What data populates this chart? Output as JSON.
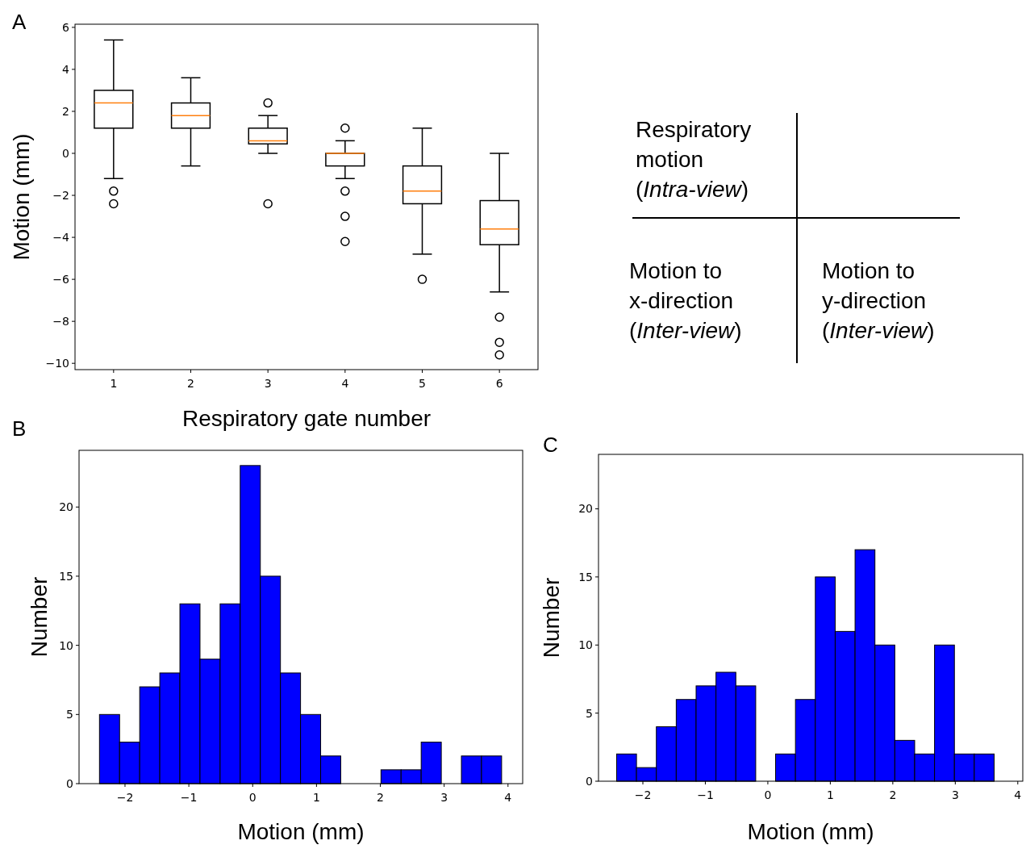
{
  "chart_data": [
    {
      "type": "box",
      "title": "A",
      "xlabel": "Respiratory gate number",
      "ylabel": "Motion (mm)",
      "categories": [
        "1",
        "2",
        "3",
        "4",
        "5",
        "6"
      ],
      "ylim": [
        -10.3,
        6.15
      ],
      "yticks": [
        -10,
        -8,
        -6,
        -4,
        -2,
        0,
        2,
        4,
        6
      ],
      "boxes": [
        {
          "low": -1.2,
          "q1": 1.2,
          "median": 2.4,
          "q3": 3.0,
          "high": 5.4,
          "outliers": [
            -1.8,
            -2.4
          ]
        },
        {
          "low": -0.6,
          "q1": 1.2,
          "median": 1.8,
          "q3": 2.4,
          "high": 3.6
        },
        {
          "low": 0,
          "q1": 0.45,
          "median": 0.6,
          "q3": 1.2,
          "high": 1.8,
          "outliers": [
            2.4,
            -2.4
          ]
        },
        {
          "low": -1.2,
          "q1": -0.6,
          "median": 0,
          "q3": 0,
          "high": 0.6,
          "outliers": [
            1.2,
            -1.8,
            -3.0,
            -4.2
          ]
        },
        {
          "low": -4.8,
          "q1": -2.4,
          "median": -1.8,
          "q3": -0.6,
          "high": 1.2,
          "outliers": [
            -6.0
          ]
        },
        {
          "low": -6.6,
          "q1": -4.35,
          "median": -3.6,
          "q3": -2.25,
          "high": 0,
          "outliers": [
            -7.8,
            -9.0,
            -9.6
          ]
        }
      ]
    },
    {
      "type": "other",
      "annotations": [
        "Respiratory\nmotion\n(Intra-view)",
        "Motion to\nx-direction\n(Inter-view)",
        "Motion to\ny-direction\n(Inter-view)"
      ]
    },
    {
      "type": "histogram",
      "title": "B",
      "xlabel": "Motion (mm)",
      "ylabel": "Number",
      "color": "#0000ff",
      "bins": [
        -2.4,
        -2.085,
        -1.77,
        -1.455,
        -1.14,
        -0.825,
        -0.51,
        -0.195,
        0.12,
        0.435,
        0.75,
        1.065,
        1.38,
        1.695,
        2.01,
        2.325,
        2.64,
        2.955,
        3.27,
        3.585,
        3.9
      ],
      "values": [
        5,
        3,
        7,
        8,
        13,
        9,
        13,
        23,
        15,
        8,
        5,
        2,
        0,
        0,
        1,
        1,
        3,
        0,
        2,
        2
      ],
      "xlim": [
        -2.72,
        4.23
      ],
      "xticks": [
        -2,
        -1,
        0,
        1,
        2,
        3,
        4
      ],
      "ylim": [
        0,
        24.1
      ],
      "yticks": [
        0,
        5,
        10,
        15,
        20
      ]
    },
    {
      "type": "histogram",
      "title": "C",
      "xlabel": "Motion (mm)",
      "ylabel": "Number",
      "color": "#0000ff",
      "bins": [
        -2.42,
        -2.102,
        -1.784,
        -1.466,
        -1.148,
        -0.83,
        -0.512,
        -0.194,
        0.124,
        0.442,
        0.76,
        1.078,
        1.396,
        1.714,
        2.032,
        2.35,
        2.668,
        2.986,
        3.304,
        3.622,
        3.94
      ],
      "values": [
        2,
        1,
        4,
        6,
        7,
        8,
        7,
        0,
        2,
        6,
        15,
        11,
        17,
        10,
        3,
        2,
        10,
        2,
        2,
        0
      ],
      "xlim": [
        -2.71,
        4.08
      ],
      "xticks": [
        -2,
        -1,
        0,
        1,
        2,
        3,
        4
      ],
      "ylim": [
        0,
        24.0
      ],
      "yticks": [
        0,
        5,
        10,
        15,
        20
      ]
    }
  ]
}
